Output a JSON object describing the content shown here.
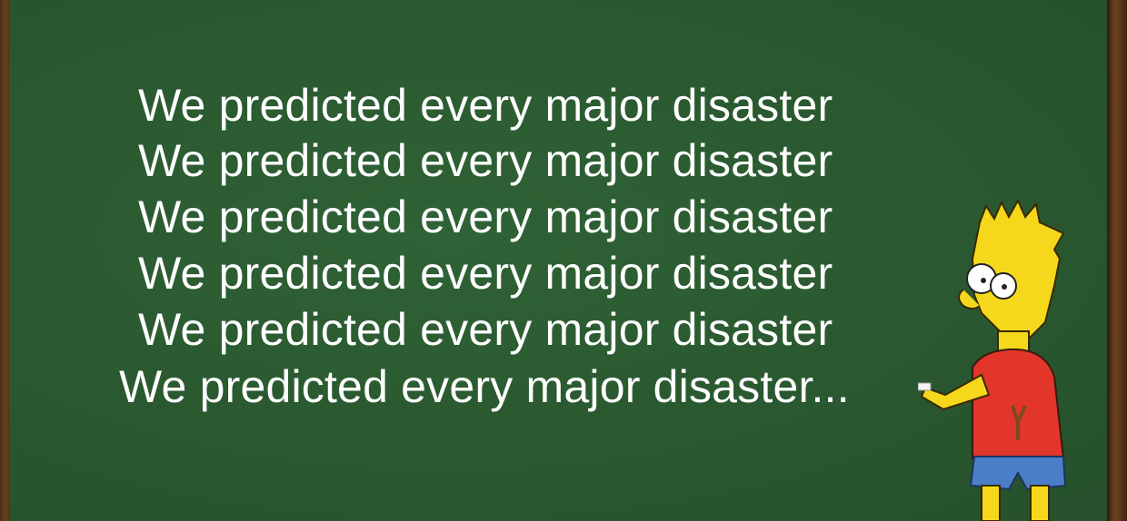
{
  "board": {
    "lines": [
      "We predicted every major disaster",
      "We predicted every major disaster",
      "We predicted every major disaster",
      "We predicted every major disaster",
      "We predicted every major disaster",
      "We predicted every major disaster..."
    ]
  },
  "colors": {
    "chalkboard": "#2b5a31",
    "frame": "#5a3518",
    "chalk_text": "#ffffff"
  },
  "illustration": {
    "character": "cartoon boy writing on chalkboard"
  }
}
